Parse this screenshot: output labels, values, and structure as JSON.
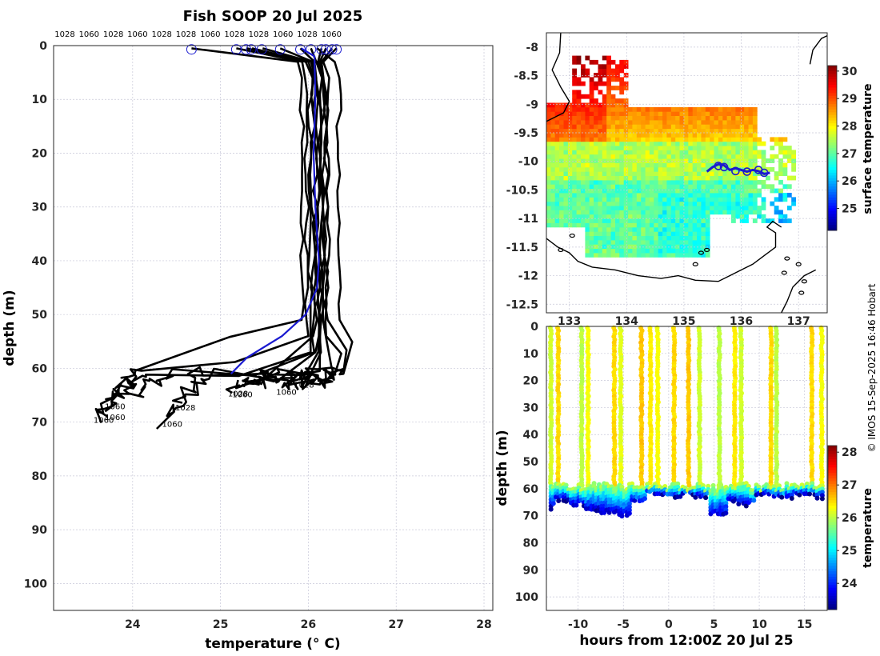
{
  "title": "Fish SOOP 20 Jul 2025",
  "credit": "© IMOS 15-Sep-2025 16:46 Hobart",
  "colors": {
    "mean_profile": "#1a1ad0",
    "profile": "#000000",
    "land": "#000000"
  },
  "chart_data": [
    {
      "type": "line",
      "name": "temperature-profiles",
      "title": "Fish SOOP 20 Jul 2025",
      "xlabel": "temperature (° C)",
      "ylabel": "depth (m)",
      "xlim": [
        23.1,
        28.1
      ],
      "ylim": [
        0,
        105
      ],
      "y_reversed": true,
      "xticks": [
        24,
        25,
        26,
        27,
        28
      ],
      "yticks": [
        0,
        10,
        20,
        30,
        40,
        50,
        60,
        70,
        80,
        90,
        100
      ],
      "top_labels": [
        "1028",
        "1060",
        "1028",
        "1060",
        "1028",
        "1028",
        "1060",
        "1028",
        "1028",
        "1060",
        "1028",
        "1060"
      ],
      "bottom_labels": [
        {
          "text": "1060",
          "t": 23.67,
          "d": 69.5
        },
        {
          "text": "1060",
          "t": 23.8,
          "d": 69.0
        },
        {
          "text": "1060",
          "t": 23.8,
          "d": 67.0
        },
        {
          "text": "1028",
          "t": 24.6,
          "d": 67.2
        },
        {
          "text": "1060",
          "t": 24.45,
          "d": 70.3
        },
        {
          "text": "1028",
          "t": 25.2,
          "d": 64.6
        },
        {
          "text": "1060",
          "t": 25.25,
          "d": 64.8
        },
        {
          "text": "1060",
          "t": 25.75,
          "d": 64.3
        },
        {
          "text": "1028",
          "t": 25.95,
          "d": 63.0
        }
      ],
      "surface_markers": [
        24.67,
        25.18,
        25.29,
        25.35,
        25.47,
        25.68,
        25.91,
        26.03,
        26.15,
        26.2,
        26.27,
        26.32
      ],
      "mean_profile": {
        "name": "mean",
        "points": [
          [
            25.92,
            0.5
          ],
          [
            26.07,
            2
          ],
          [
            26.08,
            10
          ],
          [
            26.06,
            20
          ],
          [
            26.08,
            30
          ],
          [
            26.12,
            40
          ],
          [
            26.1,
            45
          ],
          [
            25.97,
            50
          ],
          [
            25.7,
            54
          ],
          [
            25.3,
            58
          ],
          [
            25.12,
            61
          ]
        ]
      },
      "profiles": [
        {
          "surface": 24.67,
          "mixed": 25.93,
          "mld": 51,
          "bottom": 23.68,
          "deep": 69
        },
        {
          "surface": 25.18,
          "mixed": 25.98,
          "mld": 55,
          "bottom": 23.75,
          "deep": 68
        },
        {
          "surface": 25.3,
          "mixed": 26.02,
          "mld": 57,
          "bottom": 23.8,
          "deep": 67
        },
        {
          "surface": 25.36,
          "mixed": 26.05,
          "mld": 58,
          "bottom": 24.1,
          "deep": 65
        },
        {
          "surface": 25.48,
          "mixed": 26.08,
          "mld": 56,
          "bottom": 24.45,
          "deep": 70
        },
        {
          "surface": 25.68,
          "mixed": 26.1,
          "mld": 59,
          "bottom": 24.6,
          "deep": 67
        },
        {
          "surface": 25.91,
          "mixed": 26.12,
          "mld": 57,
          "bottom": 25.2,
          "deep": 64
        },
        {
          "surface": 26.03,
          "mixed": 26.14,
          "mld": 58,
          "bottom": 25.3,
          "deep": 63
        },
        {
          "surface": 26.15,
          "mixed": 26.16,
          "mld": 56,
          "bottom": 25.5,
          "deep": 63
        },
        {
          "surface": 26.2,
          "mixed": 26.18,
          "mld": 55,
          "bottom": 25.75,
          "deep": 63
        },
        {
          "surface": 26.27,
          "mixed": 26.2,
          "mld": 54,
          "bottom": 25.95,
          "deep": 63
        },
        {
          "surface": 26.32,
          "mixed": 26.22,
          "mld": 53,
          "bottom": 26.05,
          "deep": 62
        },
        {
          "surface": 26.1,
          "mixed": 26.35,
          "mld": 52,
          "bottom": 26.05,
          "deep": 64
        }
      ]
    },
    {
      "type": "heatmap",
      "name": "surface-temperature-map",
      "colorbar_label": "surface temperature",
      "clim": [
        24.2,
        30.2
      ],
      "colorbar_ticks": [
        25,
        26,
        27,
        28,
        29,
        30
      ],
      "xlim": [
        132.6,
        137.5
      ],
      "ylim": [
        -12.65,
        -7.75
      ],
      "xticks": [
        133,
        134,
        135,
        136,
        137
      ],
      "yticks": [
        -8,
        -8.5,
        -9,
        -9.5,
        -10,
        -10.5,
        -11,
        -11.5,
        -12,
        -12.5
      ],
      "track": [
        [
          135.4,
          -10.18
        ],
        [
          135.5,
          -10.1
        ],
        [
          135.6,
          -10.05
        ],
        [
          135.7,
          -10.07
        ],
        [
          135.8,
          -10.15
        ],
        [
          135.9,
          -10.12
        ],
        [
          136.0,
          -10.15
        ],
        [
          136.1,
          -10.18
        ],
        [
          136.2,
          -10.15
        ],
        [
          136.3,
          -10.17
        ],
        [
          136.4,
          -10.22
        ],
        [
          136.5,
          -10.2
        ]
      ],
      "track_markers": [
        [
          135.6,
          -10.08
        ],
        [
          135.7,
          -10.1
        ],
        [
          135.9,
          -10.17
        ],
        [
          136.1,
          -10.18
        ],
        [
          136.3,
          -10.15
        ],
        [
          136.4,
          -10.2
        ]
      ]
    },
    {
      "type": "heatmap",
      "name": "depth-time-section",
      "xlabel": "hours from 12:00Z 20 Jul 25",
      "ylabel": "depth (m)",
      "colorbar_label": "temperature",
      "clim": [
        23.2,
        28.2
      ],
      "colorbar_ticks": [
        24,
        25,
        26,
        27,
        28
      ],
      "xlim": [
        -13.5,
        17.5
      ],
      "ylim": [
        0,
        105
      ],
      "y_reversed": true,
      "xticks": [
        -10,
        -5,
        0,
        5,
        10,
        15
      ],
      "yticks": [
        0,
        10,
        20,
        30,
        40,
        50,
        60,
        70,
        80,
        90,
        100
      ],
      "casts": [
        {
          "t": -13.0,
          "temp": 26.1,
          "mld": 58,
          "deep": 67
        },
        {
          "t": -12.2,
          "temp": 26.5,
          "mld": 60,
          "deep": 64
        },
        {
          "t": -9.6,
          "temp": 26.0,
          "mld": 59,
          "deep": 66
        },
        {
          "t": -8.9,
          "temp": 26.3,
          "mld": 61,
          "deep": 68
        },
        {
          "t": -6.0,
          "temp": 26.5,
          "mld": 60,
          "deep": 69
        },
        {
          "t": -5.3,
          "temp": 26.2,
          "mld": 59,
          "deep": 70
        },
        {
          "t": -3.0,
          "temp": 26.6,
          "mld": 59,
          "deep": 65
        },
        {
          "t": -2.0,
          "temp": 26.4,
          "mld": 58,
          "deep": 62
        },
        {
          "t": -1.2,
          "temp": 26.3,
          "mld": 59,
          "deep": 62
        },
        {
          "t": 0.6,
          "temp": 26.5,
          "mld": 58,
          "deep": 63
        },
        {
          "t": 2.2,
          "temp": 26.6,
          "mld": 59,
          "deep": 62
        },
        {
          "t": 3.4,
          "temp": 26.1,
          "mld": 60,
          "deep": 63
        },
        {
          "t": 5.6,
          "temp": 26.0,
          "mld": 61,
          "deep": 70
        },
        {
          "t": 7.3,
          "temp": 26.4,
          "mld": 59,
          "deep": 64
        },
        {
          "t": 8.0,
          "temp": 26.1,
          "mld": 60,
          "deep": 66
        },
        {
          "t": 11.3,
          "temp": 26.5,
          "mld": 59,
          "deep": 62
        },
        {
          "t": 11.9,
          "temp": 26.0,
          "mld": 60,
          "deep": 63
        },
        {
          "t": 15.8,
          "temp": 26.5,
          "mld": 60,
          "deep": 62
        },
        {
          "t": 16.9,
          "temp": 26.3,
          "mld": 61,
          "deep": 63
        }
      ]
    }
  ]
}
